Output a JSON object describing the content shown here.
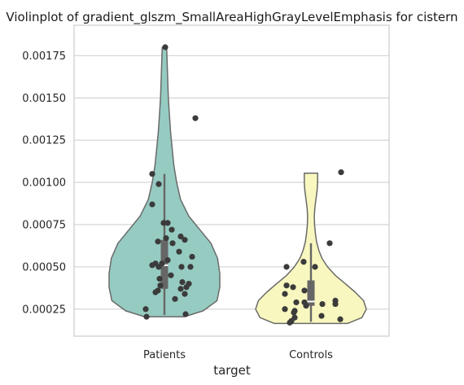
{
  "chart_data": {
    "type": "violin",
    "title": "Violinplot of gradient_glszm_SmallAreaHighGrayLevelEmphasis for cistern",
    "xlabel": "target",
    "ylabel": "",
    "categories": [
      "Patients",
      "Controls"
    ],
    "ylim": [
      9e-05,
      0.00193
    ],
    "yticks": [
      {
        "value": 0.00025,
        "label": "0.00025"
      },
      {
        "value": 0.0005,
        "label": "0.00050"
      },
      {
        "value": 0.00075,
        "label": "0.00075"
      },
      {
        "value": 0.001,
        "label": "0.00100"
      },
      {
        "value": 0.00125,
        "label": "0.00125"
      },
      {
        "value": 0.0015,
        "label": "0.00150"
      },
      {
        "value": 0.00175,
        "label": "0.00175"
      }
    ],
    "grid": true,
    "colors": {
      "Patients": "#96cbc2",
      "Controls": "#f8f7bf"
    },
    "groups": [
      {
        "name": "Patients",
        "box": {
          "q1": 0.00037,
          "median": 0.00051,
          "q3": 0.00066,
          "whisker_low": 0.000215,
          "whisker_high": 0.00105
        },
        "violin": [
          [
            0.000205,
            0.36
          ],
          [
            0.00024,
            0.7
          ],
          [
            0.0003,
            0.95
          ],
          [
            0.00038,
            1.0
          ],
          [
            0.00046,
            1.0
          ],
          [
            0.00055,
            0.96
          ],
          [
            0.00064,
            0.84
          ],
          [
            0.00072,
            0.64
          ],
          [
            0.0008,
            0.44
          ],
          [
            0.0009,
            0.29
          ],
          [
            0.001,
            0.22
          ],
          [
            0.0011,
            0.17
          ],
          [
            0.0012,
            0.14
          ],
          [
            0.0013,
            0.11
          ],
          [
            0.0014,
            0.09
          ],
          [
            0.0015,
            0.07
          ],
          [
            0.0016,
            0.06
          ],
          [
            0.0017,
            0.05
          ],
          [
            0.0018,
            0.04
          ]
        ],
        "points": [
          [
            0.0018,
            0.01
          ],
          [
            0.00138,
            0.38
          ],
          [
            0.00105,
            -0.15
          ],
          [
            0.00099,
            -0.07
          ],
          [
            0.00087,
            -0.15
          ],
          [
            0.00076,
            -0.01
          ],
          [
            0.00076,
            0.04
          ],
          [
            0.00072,
            0.09
          ],
          [
            0.00068,
            0.2
          ],
          [
            0.00067,
            0.02
          ],
          [
            0.00066,
            0.25
          ],
          [
            0.00065,
            -0.08
          ],
          [
            0.00064,
            0.1
          ],
          [
            0.00059,
            0.18
          ],
          [
            0.00056,
            0.34
          ],
          [
            0.00054,
            0.04
          ],
          [
            0.00052,
            -0.11
          ],
          [
            0.00052,
            -0.03
          ],
          [
            0.00051,
            -0.15
          ],
          [
            0.0005,
            -0.07
          ],
          [
            0.0005,
            0.21
          ],
          [
            0.0005,
            0.32
          ],
          [
            0.00045,
            0.08
          ],
          [
            0.00043,
            -0.06
          ],
          [
            0.00041,
            0.22
          ],
          [
            0.0004,
            0.3
          ],
          [
            0.00039,
            -0.05
          ],
          [
            0.00038,
            0.27
          ],
          [
            0.00037,
            0.2
          ],
          [
            0.00036,
            -0.08
          ],
          [
            0.00035,
            -0.11
          ],
          [
            0.00034,
            0.25
          ],
          [
            0.00031,
            0.13
          ],
          [
            0.00025,
            -0.23
          ],
          [
            0.00022,
            0.26
          ],
          [
            0.000205,
            -0.22
          ]
        ]
      },
      {
        "name": "Controls",
        "box": {
          "q1": 0.00027,
          "median": 0.000295,
          "q3": 0.00042,
          "whisker_low": 0.000175,
          "whisker_high": 0.00064
        },
        "violin": [
          [
            0.000165,
            0.66
          ],
          [
            0.0002,
            0.92
          ],
          [
            0.00025,
            1.0
          ],
          [
            0.0003,
            0.95
          ],
          [
            0.00035,
            0.8
          ],
          [
            0.0004,
            0.62
          ],
          [
            0.00045,
            0.44
          ],
          [
            0.0005,
            0.3
          ],
          [
            0.00055,
            0.2
          ],
          [
            0.0006,
            0.14
          ],
          [
            0.00065,
            0.1
          ],
          [
            0.0007,
            0.08
          ],
          [
            0.00075,
            0.065
          ],
          [
            0.0008,
            0.06
          ],
          [
            0.00085,
            0.07
          ],
          [
            0.0009,
            0.09
          ],
          [
            0.00095,
            0.11
          ],
          [
            0.001,
            0.12
          ],
          [
            0.001055,
            0.12
          ]
        ],
        "points": [
          [
            0.00106,
            0.37
          ],
          [
            0.00064,
            0.23
          ],
          [
            0.00053,
            -0.09
          ],
          [
            0.0005,
            -0.3
          ],
          [
            0.0005,
            0.05
          ],
          [
            0.00039,
            -0.3
          ],
          [
            0.00038,
            -0.22
          ],
          [
            0.00036,
            -0.08
          ],
          [
            0.00034,
            -0.32
          ],
          [
            0.0003,
            0.3
          ],
          [
            0.00029,
            -0.18
          ],
          [
            0.00029,
            -0.08
          ],
          [
            0.00028,
            0.14
          ],
          [
            0.00028,
            0.3
          ],
          [
            0.00027,
            -0.06
          ],
          [
            0.00025,
            -0.32
          ],
          [
            0.00024,
            -0.2
          ],
          [
            0.00023,
            -0.21
          ],
          [
            0.00021,
            0.13
          ],
          [
            0.0002,
            -0.2
          ],
          [
            0.00019,
            0.36
          ],
          [
            0.00018,
            -0.24
          ],
          [
            0.00017,
            -0.26
          ]
        ]
      }
    ]
  }
}
